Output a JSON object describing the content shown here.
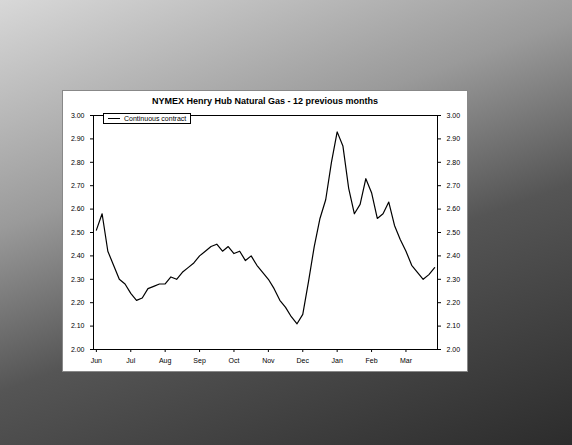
{
  "chart_data": {
    "type": "line",
    "title": "NYMEX Henry Hub Natural Gas - 12 previous months",
    "categories": [
      "Jun",
      null,
      null,
      null,
      null,
      null,
      "Jul",
      null,
      null,
      null,
      null,
      null,
      "Aug",
      null,
      null,
      null,
      null,
      null,
      "Sep",
      null,
      null,
      null,
      null,
      null,
      "Oct",
      null,
      null,
      null,
      null,
      null,
      "Nov",
      null,
      null,
      null,
      null,
      null,
      "Dec",
      null,
      null,
      null,
      null,
      null,
      "Jan",
      null,
      null,
      null,
      null,
      null,
      "Feb",
      null,
      null,
      null,
      null,
      null,
      "Mar",
      null,
      null,
      null,
      null,
      null
    ],
    "series": [
      {
        "name": "Continuous contract",
        "color": "#000000",
        "values": [
          2.51,
          2.58,
          2.42,
          2.36,
          2.3,
          2.28,
          2.24,
          2.21,
          2.22,
          2.26,
          2.27,
          2.28,
          2.28,
          2.31,
          2.3,
          2.33,
          2.35,
          2.37,
          2.4,
          2.42,
          2.44,
          2.45,
          2.42,
          2.44,
          2.41,
          2.42,
          2.38,
          2.4,
          2.36,
          2.33,
          2.3,
          2.26,
          2.21,
          2.18,
          2.14,
          2.11,
          2.15,
          2.29,
          2.44,
          2.56,
          2.64,
          2.8,
          2.93,
          2.87,
          2.69,
          2.58,
          2.62,
          2.73,
          2.67,
          2.56,
          2.58,
          2.63,
          2.53,
          2.47,
          2.42,
          2.36,
          2.33,
          2.3,
          2.32,
          2.35
        ]
      }
    ],
    "ylim": [
      2.0,
      3.0
    ],
    "yticks": [
      {
        "value": 2.0,
        "label": "2.00"
      },
      {
        "value": 2.1,
        "label": "2.10"
      },
      {
        "value": 2.2,
        "label": "2.20"
      },
      {
        "value": 2.3,
        "label": "2.30"
      },
      {
        "value": 2.4,
        "label": "2.40"
      },
      {
        "value": 2.5,
        "label": "2.50"
      },
      {
        "value": 2.6,
        "label": "2.60"
      },
      {
        "value": 2.7,
        "label": "2.70"
      },
      {
        "value": 2.8,
        "label": "2.80"
      },
      {
        "value": 2.9,
        "label": "2.90"
      },
      {
        "value": 3.0,
        "label": "3.00"
      }
    ],
    "y2lim": [
      2.0,
      3.0
    ],
    "y2ticks": [
      {
        "value": 2.0,
        "label": "2.00"
      },
      {
        "value": 2.1,
        "label": "2.10"
      },
      {
        "value": 2.2,
        "label": "2.20"
      },
      {
        "value": 2.3,
        "label": "2.30"
      },
      {
        "value": 2.4,
        "label": "2.40"
      },
      {
        "value": 2.5,
        "label": "2.50"
      },
      {
        "value": 2.6,
        "label": "2.60"
      },
      {
        "value": 2.7,
        "label": "2.70"
      },
      {
        "value": 2.8,
        "label": "2.80"
      },
      {
        "value": 2.9,
        "label": "2.90"
      },
      {
        "value": 3.0,
        "label": "3.00"
      }
    ],
    "grid": false,
    "legend": "top-left"
  }
}
